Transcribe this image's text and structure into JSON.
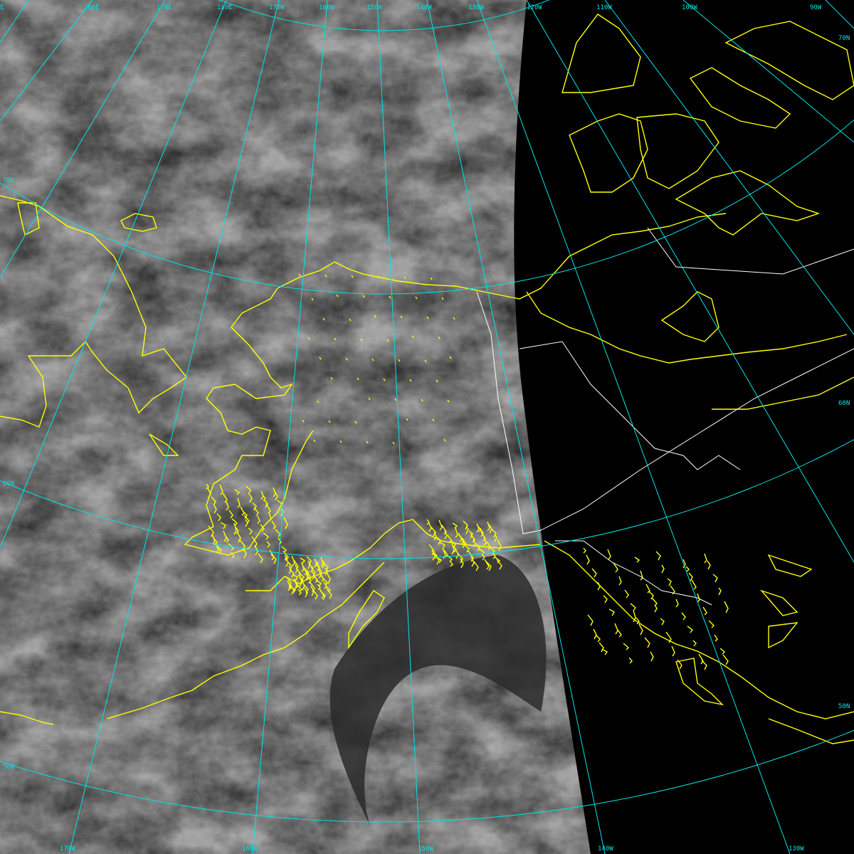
{
  "colors": {
    "graticule": "#00e5e5",
    "coastline": "#ffff00",
    "border": "#ffffff",
    "night": "#000000",
    "cloud_base": "#8a8a8a"
  },
  "labels": {
    "top": [
      "E",
      "160E",
      "170E",
      "180E",
      "170W",
      "160W",
      "150W",
      "140W",
      "130W",
      "120W",
      "110W",
      "100W",
      "90W"
    ],
    "bottom": [
      "170W",
      "160W",
      "150W",
      "140W",
      "130W"
    ],
    "left": [
      "70N",
      "60N",
      "50N"
    ],
    "right": [
      "70N",
      "60N",
      "50N"
    ]
  }
}
